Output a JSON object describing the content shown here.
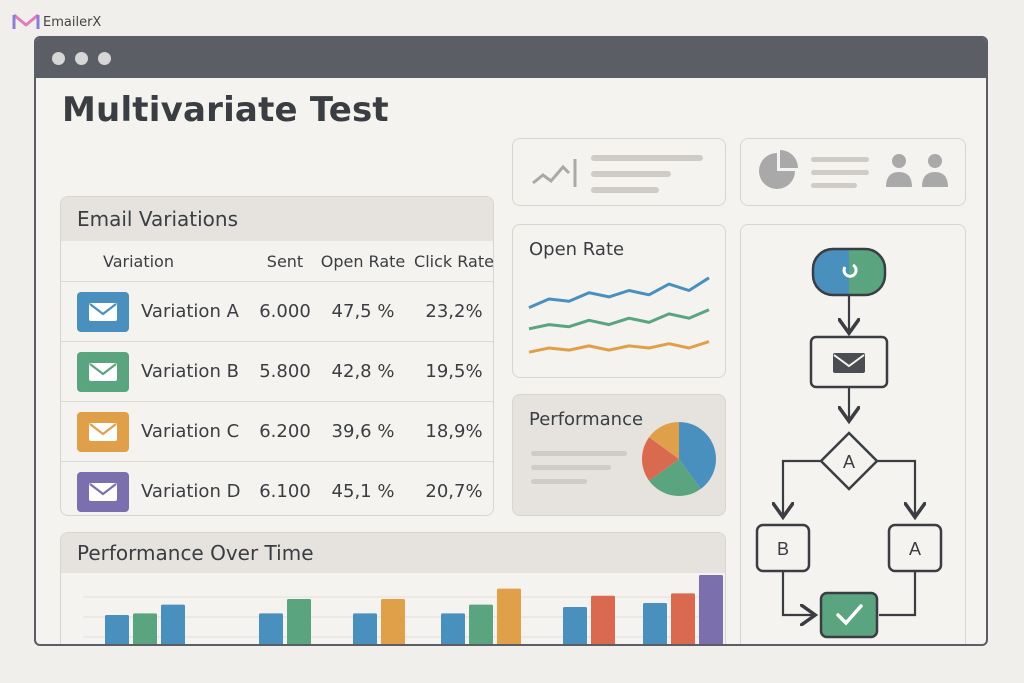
{
  "brand": {
    "name": "EmailerX"
  },
  "page": {
    "title": "Multivariate Test"
  },
  "email_variations": {
    "heading": "Email Variations",
    "columns": [
      "Variation",
      "Sent",
      "Open Rate",
      "Click Rate"
    ],
    "rows": [
      {
        "name": "Variation A",
        "sent": "6.000",
        "open_rate": "47,5 %",
        "click_rate": "23,2%",
        "color": "#4a90bf"
      },
      {
        "name": "Variation B",
        "sent": "5.800",
        "open_rate": "42,8 %",
        "click_rate": "19,5%",
        "color": "#5aa57f"
      },
      {
        "name": "Variation C",
        "sent": "6.200",
        "open_rate": "39,6 %",
        "click_rate": "18,9%",
        "color": "#e0a04a"
      },
      {
        "name": "Variation D",
        "sent": "6.100",
        "open_rate": "45,1 %",
        "click_rate": "20,7%",
        "color": "#7c6fad"
      }
    ]
  },
  "open_rate_card": {
    "label": "Open Rate"
  },
  "performance_card": {
    "label": "Performance"
  },
  "performance_over_time": {
    "heading": "Performance Over Time"
  },
  "flow": {
    "node_a": "A",
    "branch_left": "B",
    "branch_right": "A"
  },
  "colors": {
    "blue": "#4a90bf",
    "green": "#5aa57f",
    "orange": "#e0a04a",
    "red": "#d9694f",
    "purple": "#7c6fad"
  },
  "chart_data": [
    {
      "type": "line",
      "title": "Open Rate",
      "series": [
        {
          "values": [
            3.2,
            3.6,
            3.5,
            3.9,
            3.7,
            4.0,
            3.8,
            4.3,
            4.0,
            4.6
          ]
        },
        {
          "values": [
            2.2,
            2.4,
            2.3,
            2.6,
            2.4,
            2.7,
            2.5,
            2.9,
            2.7,
            3.1
          ]
        },
        {
          "values": [
            1.1,
            1.3,
            1.2,
            1.4,
            1.2,
            1.4,
            1.3,
            1.5,
            1.3,
            1.6
          ]
        }
      ]
    },
    {
      "type": "pie",
      "title": "Performance",
      "values": [
        40,
        25,
        20,
        15
      ]
    },
    {
      "type": "bar",
      "title": "Performance Over Time",
      "groups": [
        [
          {
            "v": 40,
            "c": "blue"
          },
          {
            "v": 42,
            "c": "green"
          },
          {
            "v": 53,
            "c": "blue"
          }
        ],
        [
          {
            "v": 42,
            "c": "blue"
          },
          {
            "v": 60,
            "c": "green"
          }
        ],
        [
          {
            "v": 42,
            "c": "blue"
          },
          {
            "v": 60,
            "c": "orange"
          }
        ],
        [
          {
            "v": 42,
            "c": "blue"
          },
          {
            "v": 53,
            "c": "green"
          },
          {
            "v": 73,
            "c": "orange"
          }
        ],
        [
          {
            "v": 50,
            "c": "blue"
          },
          {
            "v": 64,
            "c": "red"
          }
        ],
        [
          {
            "v": 55,
            "c": "blue"
          },
          {
            "v": 67,
            "c": "red"
          },
          {
            "v": 90,
            "c": "purple"
          }
        ]
      ],
      "ylim": [
        0,
        100
      ]
    }
  ]
}
